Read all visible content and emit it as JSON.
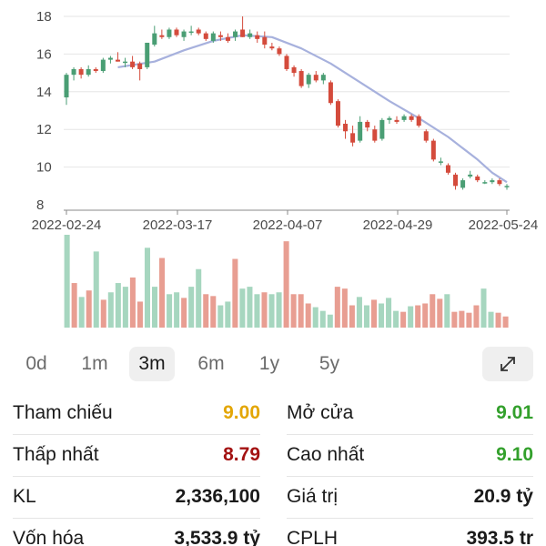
{
  "chart_data": {
    "type": "candlestick",
    "y_ticks": [
      "18",
      "16",
      "14",
      "12",
      "10",
      "8"
    ],
    "ylim": [
      8,
      18
    ],
    "x_tick_labels": [
      "2022-02-24",
      "2022-03-17",
      "2022-04-07",
      "2022-04-29",
      "2022-05-24"
    ],
    "ohlc": [
      [
        13.7,
        15.0,
        13.3,
        14.9
      ],
      [
        14.9,
        15.3,
        14.6,
        15.2
      ],
      [
        15.2,
        15.3,
        14.7,
        14.9
      ],
      [
        14.9,
        15.4,
        14.8,
        15.2
      ],
      [
        15.2,
        15.3,
        15.0,
        15.1
      ],
      [
        15.1,
        15.8,
        15.0,
        15.7
      ],
      [
        15.7,
        15.9,
        15.5,
        15.8
      ],
      [
        15.7,
        16.1,
        15.6,
        15.6
      ],
      [
        15.6,
        15.8,
        15.3,
        15.6
      ],
      [
        15.6,
        15.9,
        15.2,
        15.3
      ],
      [
        15.5,
        15.6,
        14.6,
        15.2
      ],
      [
        15.3,
        16.6,
        15.2,
        16.6
      ],
      [
        16.5,
        17.5,
        16.4,
        17.1
      ],
      [
        17.0,
        17.3,
        16.8,
        16.9
      ],
      [
        16.9,
        17.4,
        16.8,
        17.3
      ],
      [
        17.3,
        17.4,
        16.9,
        17.0
      ],
      [
        16.9,
        17.3,
        16.7,
        17.2
      ],
      [
        17.2,
        17.5,
        17.0,
        17.2
      ],
      [
        17.3,
        17.4,
        17.0,
        17.1
      ],
      [
        17.1,
        17.2,
        16.7,
        16.8
      ],
      [
        16.7,
        17.2,
        16.6,
        17.1
      ],
      [
        17.0,
        17.2,
        16.7,
        16.9
      ],
      [
        16.9,
        17.1,
        16.6,
        16.7
      ],
      [
        16.9,
        17.3,
        16.7,
        17.2
      ],
      [
        17.3,
        18.0,
        16.9,
        16.9
      ],
      [
        16.9,
        17.3,
        16.8,
        17.1
      ],
      [
        17.0,
        17.2,
        16.6,
        16.8
      ],
      [
        16.9,
        17.2,
        16.3,
        16.5
      ],
      [
        16.4,
        16.6,
        16.2,
        16.3
      ],
      [
        16.3,
        16.4,
        15.9,
        16.0
      ],
      [
        15.9,
        16.0,
        15.1,
        15.2
      ],
      [
        15.3,
        15.4,
        14.8,
        15.0
      ],
      [
        15.1,
        15.2,
        14.2,
        14.3
      ],
      [
        14.4,
        15.0,
        14.2,
        14.9
      ],
      [
        14.9,
        15.1,
        14.5,
        14.6
      ],
      [
        14.6,
        15.0,
        14.4,
        14.9
      ],
      [
        14.5,
        14.6,
        13.3,
        13.4
      ],
      [
        13.5,
        13.6,
        12.1,
        12.2
      ],
      [
        12.3,
        12.5,
        11.5,
        11.9
      ],
      [
        11.8,
        12.2,
        11.1,
        11.3
      ],
      [
        11.4,
        12.7,
        11.3,
        12.4
      ],
      [
        12.4,
        12.5,
        11.9,
        12.1
      ],
      [
        12.0,
        12.2,
        11.3,
        11.4
      ],
      [
        11.5,
        12.6,
        11.4,
        12.5
      ],
      [
        12.5,
        12.7,
        12.3,
        12.6
      ],
      [
        12.5,
        12.7,
        12.3,
        12.4
      ],
      [
        12.5,
        12.8,
        12.4,
        12.7
      ],
      [
        12.7,
        12.8,
        12.4,
        12.5
      ],
      [
        12.7,
        12.8,
        12.1,
        12.2
      ],
      [
        11.9,
        12.0,
        11.3,
        11.4
      ],
      [
        11.4,
        11.5,
        10.3,
        10.4
      ],
      [
        10.3,
        10.5,
        10.1,
        10.3
      ],
      [
        10.1,
        10.2,
        9.6,
        9.7
      ],
      [
        9.6,
        9.7,
        8.8,
        9.0
      ],
      [
        8.9,
        9.4,
        8.8,
        9.3
      ],
      [
        9.5,
        9.8,
        9.4,
        9.6
      ],
      [
        9.5,
        9.6,
        9.2,
        9.3
      ],
      [
        9.2,
        9.3,
        9.1,
        9.2
      ],
      [
        9.2,
        9.4,
        9.1,
        9.3
      ],
      [
        9.3,
        9.4,
        9.0,
        9.1
      ],
      [
        9.0,
        9.1,
        8.8,
        9.0
      ]
    ],
    "ma": [
      [
        7,
        15.3
      ],
      [
        12,
        15.6
      ],
      [
        16,
        16.2
      ],
      [
        20,
        16.7
      ],
      [
        24,
        17.0
      ],
      [
        28,
        16.9
      ],
      [
        32,
        16.3
      ],
      [
        36,
        15.5
      ],
      [
        40,
        14.5
      ],
      [
        44,
        13.5
      ],
      [
        48,
        12.6
      ],
      [
        52,
        11.6
      ],
      [
        56,
        10.4
      ],
      [
        58,
        9.7
      ],
      [
        60,
        9.2
      ]
    ],
    "volume": [
      {
        "v": 100,
        "up": true
      },
      {
        "v": 48,
        "up": false
      },
      {
        "v": 33,
        "up": true
      },
      {
        "v": 40,
        "up": false
      },
      {
        "v": 82,
        "up": true
      },
      {
        "v": 30,
        "up": false
      },
      {
        "v": 38,
        "up": true
      },
      {
        "v": 48,
        "up": true
      },
      {
        "v": 44,
        "up": true
      },
      {
        "v": 54,
        "up": false
      },
      {
        "v": 28,
        "up": false
      },
      {
        "v": 86,
        "up": true
      },
      {
        "v": 44,
        "up": true
      },
      {
        "v": 75,
        "up": false
      },
      {
        "v": 36,
        "up": true
      },
      {
        "v": 38,
        "up": true
      },
      {
        "v": 32,
        "up": false
      },
      {
        "v": 44,
        "up": true
      },
      {
        "v": 63,
        "up": true
      },
      {
        "v": 36,
        "up": false
      },
      {
        "v": 34,
        "up": false
      },
      {
        "v": 24,
        "up": true
      },
      {
        "v": 28,
        "up": true
      },
      {
        "v": 74,
        "up": false
      },
      {
        "v": 42,
        "up": true
      },
      {
        "v": 44,
        "up": true
      },
      {
        "v": 36,
        "up": true
      },
      {
        "v": 38,
        "up": false
      },
      {
        "v": 36,
        "up": true
      },
      {
        "v": 38,
        "up": true
      },
      {
        "v": 93,
        "up": false
      },
      {
        "v": 36,
        "up": false
      },
      {
        "v": 36,
        "up": false
      },
      {
        "v": 26,
        "up": false
      },
      {
        "v": 22,
        "up": true
      },
      {
        "v": 18,
        "up": true
      },
      {
        "v": 14,
        "up": true
      },
      {
        "v": 44,
        "up": false
      },
      {
        "v": 42,
        "up": false
      },
      {
        "v": 24,
        "up": false
      },
      {
        "v": 33,
        "up": true
      },
      {
        "v": 24,
        "up": true
      },
      {
        "v": 30,
        "up": false
      },
      {
        "v": 26,
        "up": true
      },
      {
        "v": 32,
        "up": true
      },
      {
        "v": 18,
        "up": true
      },
      {
        "v": 17,
        "up": false
      },
      {
        "v": 23,
        "up": true
      },
      {
        "v": 24,
        "up": false
      },
      {
        "v": 26,
        "up": false
      },
      {
        "v": 36,
        "up": false
      },
      {
        "v": 31,
        "up": false
      },
      {
        "v": 36,
        "up": true
      },
      {
        "v": 17,
        "up": false
      },
      {
        "v": 18,
        "up": false
      },
      {
        "v": 16,
        "up": false
      },
      {
        "v": 24,
        "up": false
      },
      {
        "v": 42,
        "up": true
      },
      {
        "v": 17,
        "up": true
      },
      {
        "v": 16,
        "up": false
      },
      {
        "v": 12,
        "up": false
      }
    ],
    "colors": {
      "up": "#4a9e74",
      "down": "#d44b3c",
      "up_volume": "#a6d6bf",
      "down_volume": "#e89e92",
      "ma_line": "#a7b1dd",
      "grid": "#e6e6e6",
      "axis_line": "#8a8a8a"
    }
  },
  "range_tabs": [
    {
      "label": "0d",
      "active": false
    },
    {
      "label": "1m",
      "active": false
    },
    {
      "label": "3m",
      "active": true
    },
    {
      "label": "6m",
      "active": false
    },
    {
      "label": "1y",
      "active": false
    },
    {
      "label": "5y",
      "active": false
    }
  ],
  "expand_icon": "expand-arrows-icon",
  "stats": [
    {
      "label": "Tham chiếu",
      "value": "9.00",
      "color": "#e3a605"
    },
    {
      "label": "Mở cửa",
      "value": "9.01",
      "color": "#33a02c"
    },
    {
      "label": "Thấp nhất",
      "value": "8.79",
      "color": "#a31212"
    },
    {
      "label": "Cao nhất",
      "value": "9.10",
      "color": "#33a02c"
    },
    {
      "label": "KL",
      "value": "2,336,100",
      "color": "#1a1a1a"
    },
    {
      "label": "Giá trị",
      "value": "20.9 tỷ",
      "color": "#1a1a1a"
    },
    {
      "label": "Vốn hóa",
      "value": "3,533.9 tỷ",
      "color": "#1a1a1a"
    },
    {
      "label": "CPLH",
      "value": "393.5 tr",
      "color": "#1a1a1a"
    }
  ]
}
